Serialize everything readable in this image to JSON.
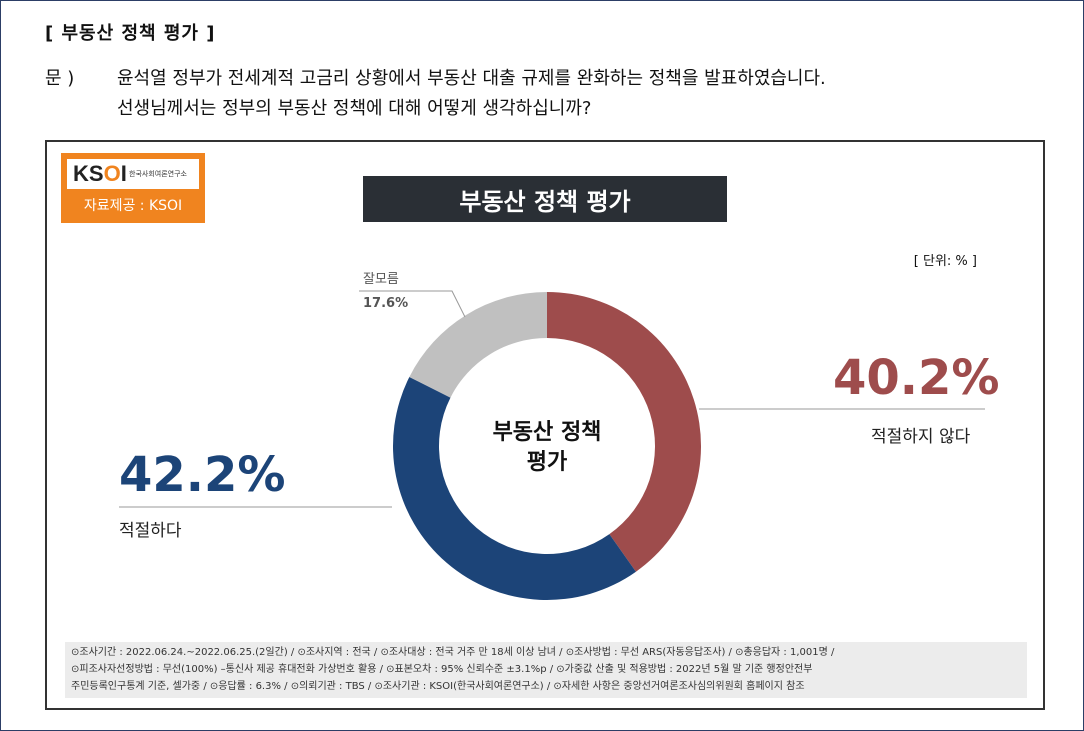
{
  "header": {
    "section_title": "[ 부동산 정책 평가 ]",
    "question_label": "문 )",
    "question_line1": "윤석열 정부가 전세계적 고금리 상황에서 부동산 대출 규제를 완화하는 정책을 발표하였습니다.",
    "question_line2": "선생님께서는 정부의 부동산 정책에 대해 어떻게 생각하십니까?"
  },
  "logo": {
    "mark": "KSOI",
    "subtitle": "한국사회여론연구소",
    "caption": "자료제공 : KSOI",
    "color": "#f0841f"
  },
  "chart_data": {
    "type": "pie",
    "title": "부동산 정책 평가",
    "center_label_line1": "부동산 정책",
    "center_label_line2": "평가",
    "unit": "[ 단위: % ]",
    "slices": [
      {
        "label": "적절하지 않다",
        "value": 40.2,
        "display": "40.2%",
        "color": "#9e4c4c"
      },
      {
        "label": "적절하다",
        "value": 42.2,
        "display": "42.2%",
        "color": "#1c4478"
      },
      {
        "label": "잘모름",
        "value": 17.6,
        "display": "17.6%",
        "color": "#c0c0c0"
      }
    ]
  },
  "footer": {
    "line1": "⊙조사기간 : 2022.06.24.~2022.06.25.(2일간) / ⊙조사지역 : 전국 / ⊙조사대상 : 전국 거주 만 18세 이상 남녀 / ⊙조사방법 : 무선 ARS(자동응답조사) / ⊙총응답자 : 1,001명 /",
    "line2": "⊙피조사자선정방법 : 무선(100%) –통신사 제공 휴대전화 가상번호 활용 / ⊙표본오차 : 95% 신뢰수준 ±3.1%p / ⊙가중값 산출 및 적용방법 : 2022년 5월 말 기준 행정안전부",
    "line3": "주민등록인구통계 기준, 셀가중 / ⊙응답률 : 6.3% / ⊙의뢰기관 : TBS / ⊙조사기관 : KSOI(한국사회여론연구소) / ⊙자세한 사항은 중앙선거여론조사심의위원회 홈페이지 참조"
  }
}
